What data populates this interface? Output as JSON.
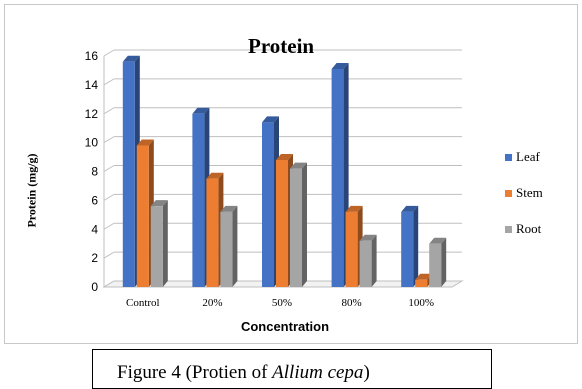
{
  "chart_data": {
    "type": "bar",
    "title": "Protein",
    "xlabel": "Concentration",
    "ylabel": "Protein (mg/g)",
    "categories": [
      "Control",
      "20%",
      "50%",
      "80%",
      "100%"
    ],
    "ylim": [
      0,
      16
    ],
    "yticks": [
      "0",
      "2",
      "4",
      "6",
      "8",
      "10",
      "12",
      "14",
      "16"
    ],
    "grid": true,
    "legend_position": "right",
    "series": [
      {
        "name": "Leaf",
        "color": "#4472c4",
        "values": [
          15.6,
          12.0,
          11.4,
          15.1,
          5.2
        ]
      },
      {
        "name": "Stem",
        "color": "#ed7d31",
        "values": [
          9.8,
          7.5,
          8.8,
          5.2,
          0.5
        ]
      },
      {
        "name": "Root",
        "color": "#a5a5a5",
        "values": [
          5.6,
          5.2,
          8.2,
          3.2,
          3.0
        ]
      }
    ]
  },
  "caption": {
    "prefix": "Figure 4 (Protien of ",
    "italic": "Allium cepa",
    "suffix": ")"
  }
}
